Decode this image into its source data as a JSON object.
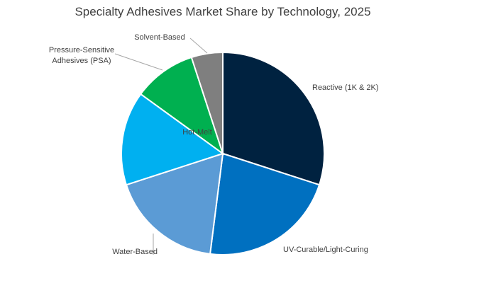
{
  "chart_data": {
    "type": "pie",
    "title": "Specialty Adhesives Market Share by Technology, 2025",
    "unit": "%",
    "slices": [
      {
        "label": "Reactive (1K & 2K)",
        "value": 30,
        "color": "#002240"
      },
      {
        "label": "UV-Curable/Light-Curing",
        "value": 22,
        "color": "#0070C0"
      },
      {
        "label": "Water-Based",
        "value": 18,
        "color": "#5B9BD5"
      },
      {
        "label": "Hot-Melt",
        "value": 15,
        "color": "#00B0F0"
      },
      {
        "label": "Pressure-Sensitive Adhesives (PSA)",
        "label_lines": [
          "Pressure-Sensitive",
          "Adhesives (PSA)"
        ],
        "value": 10,
        "color": "#00B050"
      },
      {
        "label": "Solvent-Based",
        "value": 5,
        "color": "#7F7F7F"
      }
    ],
    "start_angle": "12 o'clock",
    "direction": "clockwise",
    "legend": "none"
  }
}
